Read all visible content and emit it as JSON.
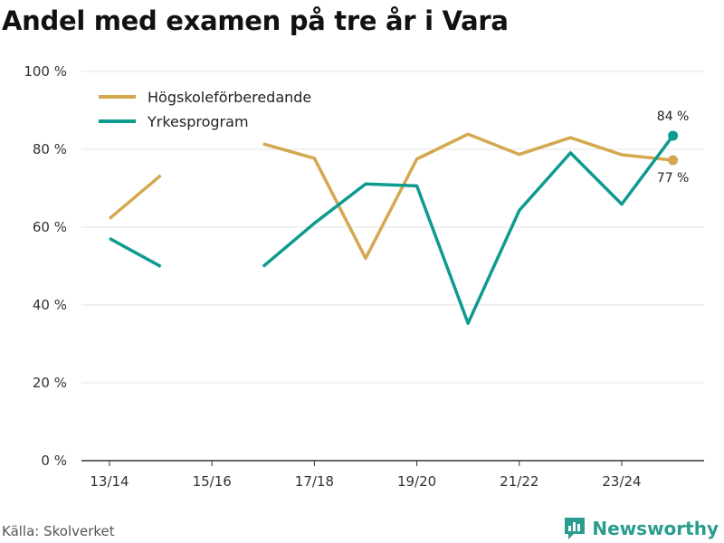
{
  "title": "Andel med examen på tre år i Vara",
  "source": "Källa: Skolverket",
  "brand": "Newsworthy",
  "chart_data": {
    "type": "line",
    "x": [
      "13/14",
      "14/15",
      "15/16",
      "16/17",
      "17/18",
      "18/19",
      "19/20",
      "20/21",
      "21/22",
      "22/23",
      "23/24",
      "24/25"
    ],
    "xticks": [
      "13/14",
      "15/16",
      "17/18",
      "19/20",
      "21/22",
      "23/24"
    ],
    "ylim": [
      0,
      100
    ],
    "yticks": [
      0,
      20,
      40,
      60,
      80,
      100
    ],
    "ytick_labels": [
      "0 %",
      "20 %",
      "40 %",
      "60 %",
      "80 %",
      "100 %"
    ],
    "series": [
      {
        "name": "Högskoleförberedande",
        "color": "#d4a84f",
        "values": [
          62.2,
          73.3,
          null,
          81.4,
          77.7,
          52.0,
          77.5,
          83.9,
          78.7,
          83.0,
          78.6,
          77.2
        ],
        "end_label": "77 %"
      },
      {
        "name": "Yrkesprogram",
        "color": "#0e9b8f",
        "values": [
          57.1,
          49.9,
          null,
          49.9,
          61.0,
          71.1,
          70.6,
          35.3,
          64.3,
          79.1,
          65.9,
          83.5
        ],
        "end_label": "84 %"
      }
    ]
  }
}
